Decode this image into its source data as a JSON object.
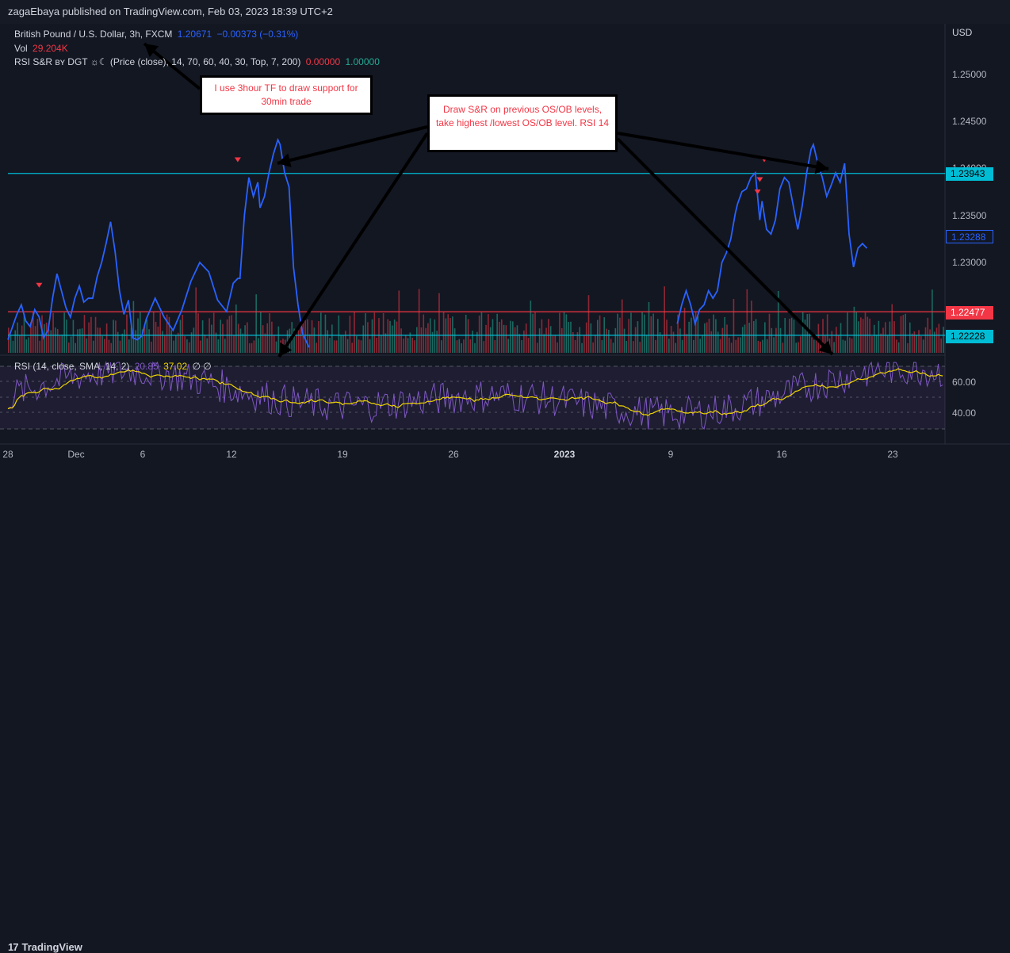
{
  "header": {
    "published": "zagaEbaya published on TradingView.com, Feb 03, 2023 18:39 UTC+2"
  },
  "legend": {
    "symbol": "British Pound / U.S. Dollar, 3h, FXCM",
    "price": "1.20671",
    "change": "−0.00373 (−0.31%)",
    "vol_label": "Vol",
    "vol_value": "29.204K",
    "indicator": "RSI S&R ʙʏ DGT ☼☾ (Price (close), 14, 70, 60, 40, 30, Top, 7, 200)",
    "ind_val1": "0.00000",
    "ind_val2": "1.00000",
    "rsi_label": "RSI (14, close, SMA, 14, 2)",
    "rsi_val": "20.85",
    "rsi_sma": "37.02",
    "rsi_extra": "∅ ∅"
  },
  "price_axis": {
    "currency": "USD",
    "ticks": [
      "1.25000",
      "1.24500",
      "1.24000",
      "1.23500",
      "1.23000"
    ],
    "level_tags": [
      {
        "value": "1.23943",
        "color": "#00bcd4"
      },
      {
        "value": "1.23288",
        "color": "#2962ff"
      },
      {
        "value": "1.22477",
        "color": "#f23645"
      },
      {
        "value": "1.22228",
        "color": "#00bcd4"
      }
    ]
  },
  "rsi_axis": {
    "ticks": [
      "60.00",
      "40.00"
    ]
  },
  "time_axis": {
    "labels": [
      "28",
      "Dec",
      "6",
      "12",
      "19",
      "26",
      "2023",
      "9",
      "16",
      "23"
    ]
  },
  "annotations": [
    {
      "text": "I use 3hour TF to draw support for 30min trade"
    },
    {
      "text": "Draw S&R on previous OS/OB levels, take highest /lowest OS/OB level. RSI 14"
    }
  ],
  "footer": {
    "brand": "TradingView",
    "mark": "17"
  },
  "chart_data": {
    "type": "line",
    "symbol": "GBP/USD",
    "timeframe": "3h",
    "x_range": [
      "2022-11-28",
      "2023-01-27"
    ],
    "ylim": [
      1.2215,
      1.2535
    ],
    "series": [
      {
        "values": [
          [
            0,
            1.2218
          ],
          [
            4,
            1.2245
          ],
          [
            6,
            1.2255
          ],
          [
            8,
            1.2238
          ],
          [
            10,
            1.2232
          ],
          [
            12,
            1.225
          ],
          [
            14,
            1.2242
          ],
          [
            16,
            1.222
          ],
          [
            18,
            1.2228
          ],
          [
            20,
            1.2262
          ],
          [
            22,
            1.2288
          ],
          [
            24,
            1.227
          ],
          [
            26,
            1.2252
          ],
          [
            28,
            1.2242
          ],
          [
            30,
            1.2262
          ],
          [
            32,
            1.2275
          ],
          [
            34,
            1.2258
          ],
          [
            36,
            1.2262
          ],
          [
            38,
            1.2262
          ],
          [
            40,
            1.2285
          ],
          [
            42,
            1.23
          ],
          [
            44,
            1.232
          ],
          [
            46,
            1.2343
          ],
          [
            48,
            1.2312
          ],
          [
            50,
            1.227
          ],
          [
            52,
            1.2245
          ],
          [
            54,
            1.226
          ],
          [
            56,
            1.222
          ],
          [
            58,
            1.2218
          ],
          [
            60,
            1.2222
          ],
          [
            62,
            1.224
          ],
          [
            66,
            1.2262
          ],
          [
            70,
            1.2242
          ],
          [
            74,
            1.2228
          ],
          [
            78,
            1.225
          ],
          [
            82,
            1.228
          ],
          [
            86,
            1.23
          ],
          [
            90,
            1.229
          ],
          [
            94,
            1.226
          ],
          [
            98,
            1.2248
          ],
          [
            101,
            1.2278
          ],
          [
            103,
            1.2283
          ],
          [
            104,
            1.2283
          ],
          [
            106,
            1.235
          ],
          [
            108,
            1.239
          ],
          [
            110,
            1.237
          ],
          [
            112,
            1.2385
          ],
          [
            113,
            1.2358
          ],
          [
            115,
            1.237
          ],
          [
            117,
            1.2395
          ],
          [
            119,
            1.2415
          ],
          [
            121,
            1.243
          ],
          [
            122,
            1.2425
          ],
          [
            124,
            1.2395
          ],
          [
            126,
            1.238
          ],
          [
            128,
            1.2295
          ],
          [
            130,
            1.2255
          ],
          [
            132,
            1.2225
          ],
          [
            135,
            1.221
          ]
        ]
      },
      {
        "values": [
          [
            300,
            1.2235
          ],
          [
            302,
            1.2255
          ],
          [
            304,
            1.227
          ],
          [
            306,
            1.2255
          ],
          [
            308,
            1.2235
          ],
          [
            310,
            1.225
          ],
          [
            312,
            1.2255
          ],
          [
            314,
            1.227
          ],
          [
            316,
            1.2262
          ],
          [
            318,
            1.227
          ],
          [
            320,
            1.23
          ],
          [
            322,
            1.231
          ],
          [
            324,
            1.2325
          ],
          [
            326,
            1.2352
          ],
          [
            327,
            1.2362
          ],
          [
            329,
            1.2375
          ],
          [
            331,
            1.2378
          ],
          [
            333,
            1.239
          ],
          [
            335,
            1.2395
          ],
          [
            337,
            1.2345
          ],
          [
            338,
            1.2365
          ],
          [
            340,
            1.2335
          ],
          [
            342,
            1.233
          ],
          [
            344,
            1.2345
          ],
          [
            346,
            1.2378
          ],
          [
            348,
            1.239
          ],
          [
            350,
            1.2385
          ],
          [
            352,
            1.236
          ],
          [
            354,
            1.2335
          ],
          [
            356,
            1.236
          ],
          [
            358,
            1.2395
          ],
          [
            360,
            1.242
          ],
          [
            361,
            1.2425
          ],
          [
            363,
            1.2405
          ],
          [
            365,
            1.239
          ],
          [
            367,
            1.237
          ],
          [
            369,
            1.2382
          ],
          [
            371,
            1.2395
          ],
          [
            373,
            1.2385
          ],
          [
            375,
            1.2405
          ],
          [
            377,
            1.233
          ],
          [
            379,
            1.2295
          ],
          [
            381,
            1.2315
          ],
          [
            383,
            1.232
          ],
          [
            385,
            1.2315
          ]
        ]
      }
    ],
    "horizontal_levels": [
      1.23943,
      1.22477,
      1.22228
    ],
    "ob_markers": [
      [
        14,
        1.2275
      ],
      [
        103,
        1.2408
      ],
      [
        339,
        1.2408
      ],
      [
        337,
        1.2387
      ],
      [
        336,
        1.2374
      ]
    ],
    "last_price": 1.23288
  }
}
